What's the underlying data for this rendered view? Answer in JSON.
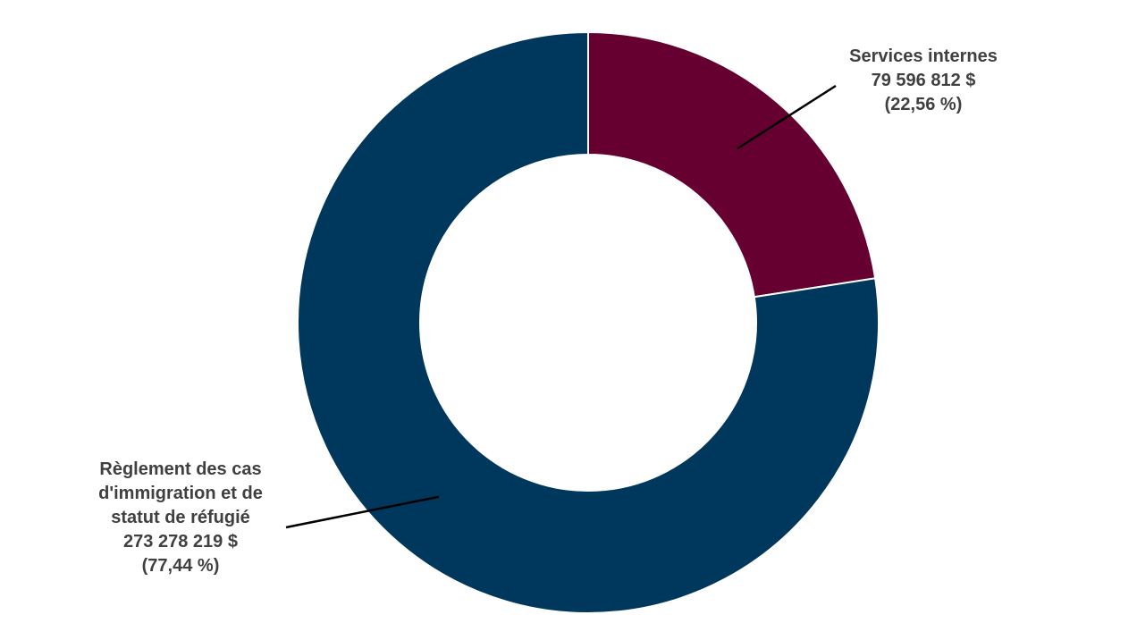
{
  "chart_data": {
    "type": "pie",
    "donut": true,
    "title": "",
    "slices": [
      {
        "name": "Services internes",
        "value": 79596812,
        "value_label": "79 596 812 $",
        "percent_label": "(22,56 %)",
        "label_lines": [
          "Services internes"
        ],
        "color": "#650030"
      },
      {
        "name": "Règlement des cas d'immigration et de statut de réfugié",
        "value": 273278219,
        "value_label": "273 278 219  $",
        "percent_label": "(77,44 %)",
        "label_lines": [
          "Règlement des cas",
          "d'immigration et de",
          "statut de réfugié"
        ],
        "color": "#00385d"
      }
    ],
    "legend": "none",
    "start_angle_deg": 0,
    "direction": "clockwise"
  }
}
